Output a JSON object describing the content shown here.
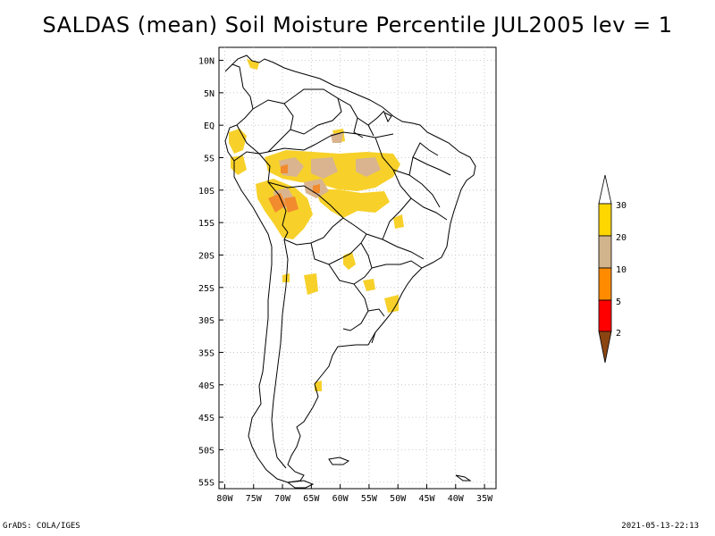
{
  "title": "SALDAS (mean) Soil Moisture Percentile JUL2005 lev = 1",
  "footer": {
    "left": "GrADS: COLA/IGES",
    "right": "2021-05-13-22:13"
  },
  "map": {
    "lon_range": [
      -81,
      -33
    ],
    "lat_range": [
      -56,
      12
    ],
    "lat_ticks": [
      {
        "value": 10,
        "label": "10N"
      },
      {
        "value": 5,
        "label": "5N"
      },
      {
        "value": 0,
        "label": "EQ"
      },
      {
        "value": -5,
        "label": "5S"
      },
      {
        "value": -10,
        "label": "10S"
      },
      {
        "value": -15,
        "label": "15S"
      },
      {
        "value": -20,
        "label": "20S"
      },
      {
        "value": -25,
        "label": "25S"
      },
      {
        "value": -30,
        "label": "30S"
      },
      {
        "value": -35,
        "label": "35S"
      },
      {
        "value": -40,
        "label": "40S"
      },
      {
        "value": -45,
        "label": "45S"
      },
      {
        "value": -50,
        "label": "50S"
      },
      {
        "value": -55,
        "label": "55S"
      }
    ],
    "lon_ticks": [
      {
        "value": -80,
        "label": "80W"
      },
      {
        "value": -75,
        "label": "75W"
      },
      {
        "value": -70,
        "label": "70W"
      },
      {
        "value": -65,
        "label": "65W"
      },
      {
        "value": -60,
        "label": "60W"
      },
      {
        "value": -55,
        "label": "55W"
      },
      {
        "value": -50,
        "label": "50W"
      },
      {
        "value": -45,
        "label": "45W"
      },
      {
        "value": -40,
        "label": "40W"
      },
      {
        "value": -35,
        "label": "35W"
      }
    ]
  },
  "colorbar": {
    "levels": [
      "2",
      "5",
      "10",
      "20",
      "30"
    ],
    "colors": [
      "#8b4513",
      "#ff0000",
      "#ff8c00",
      "#d2b48c",
      "#ffd700",
      "#ffffff"
    ]
  },
  "palette": {
    "yellow": "#f7d12a",
    "tan": "#d9b48e",
    "orange": "#f28a2e"
  }
}
